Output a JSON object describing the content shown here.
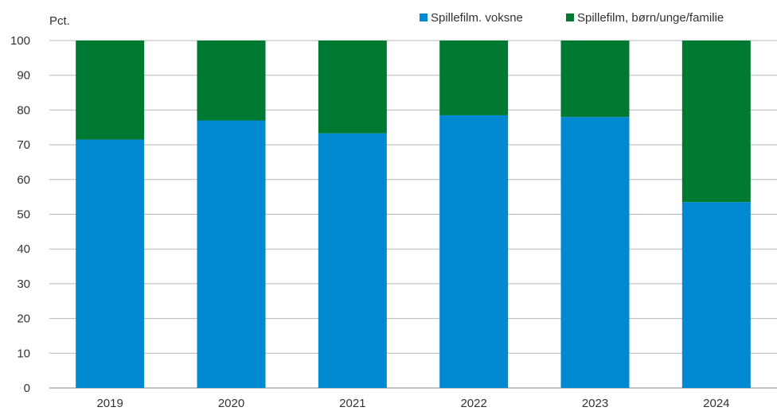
{
  "chart_data": {
    "type": "bar",
    "stacked": true,
    "unit_label": "Pct.",
    "categories": [
      "2019",
      "2020",
      "2021",
      "2022",
      "2023",
      "2024"
    ],
    "series": [
      {
        "name": "Spillefilm. voksne",
        "color": "#0088d1",
        "values": [
          71.5,
          77,
          73.3,
          78.5,
          78,
          53.5
        ]
      },
      {
        "name": "Spillefilm, børn/unge/familie",
        "color": "#007a33",
        "values": [
          28.5,
          23,
          26.7,
          21.5,
          22,
          46.5
        ]
      }
    ],
    "ylim": [
      0,
      100
    ],
    "yticks": [
      0,
      10,
      20,
      30,
      40,
      50,
      60,
      70,
      80,
      90,
      100
    ],
    "grid": true,
    "legend_position": "top-right"
  }
}
